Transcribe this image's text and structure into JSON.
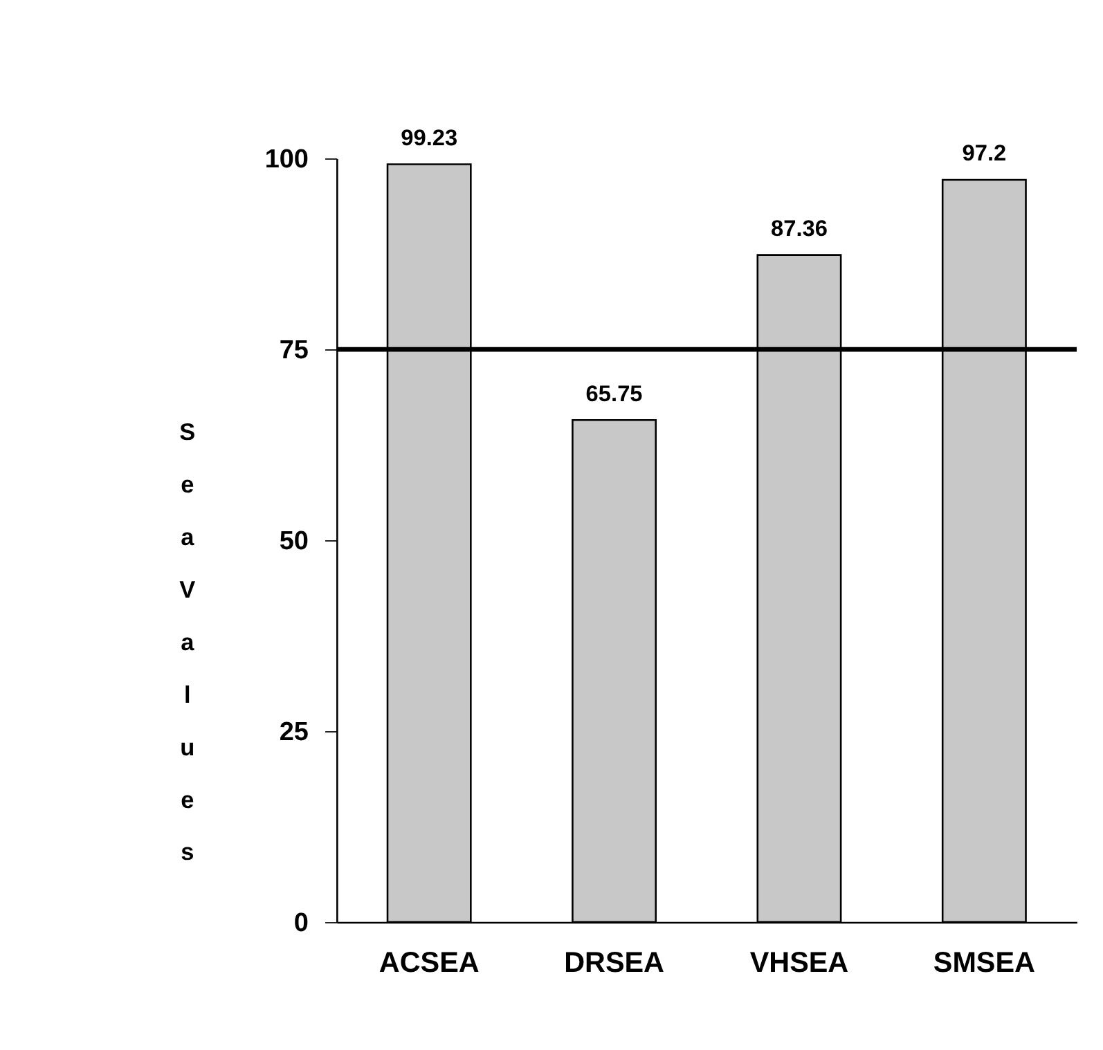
{
  "chart_data": {
    "type": "bar",
    "ylabel": "Sea Values",
    "categories": [
      "ACSEA",
      "DRSEA",
      "VHSEA",
      "SMSEA"
    ],
    "values": [
      99.23,
      65.75,
      87.36,
      97.2
    ],
    "color": "#c8c8c8",
    "ylim": [
      0,
      100
    ],
    "yticks": [
      0,
      25,
      50,
      75,
      100
    ],
    "grid": false,
    "data_labels": true,
    "ref_lines": [
      {
        "axis": "y",
        "value": 75,
        "color": "#000000"
      }
    ]
  }
}
